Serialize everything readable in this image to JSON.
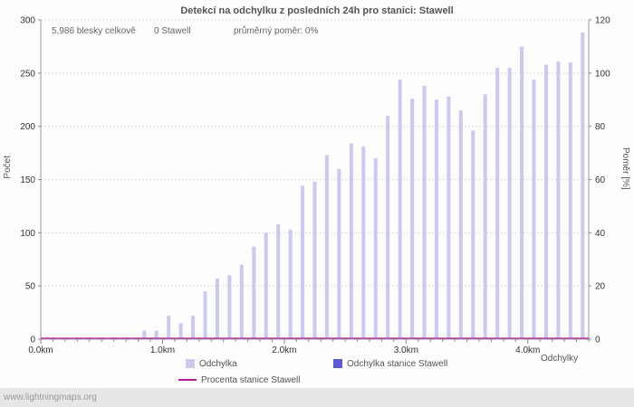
{
  "header": {
    "title": "Detekcí na odchylku z posledních 24h pro stanici: Stawell",
    "stats": {
      "total_flashes": "5,986 blesky celkově",
      "station_count": "0 Stawell",
      "average_ratio": "průměrný poměr: 0%"
    }
  },
  "chart_data": {
    "type": "bar",
    "title": "Detekcí na odchylku z posledních 24h pro stanici: Stawell",
    "xlabel": "Odchylky",
    "ylabel_left": "Počet",
    "ylabel_right": "Poměr [%]",
    "ylim_left": [
      0,
      300
    ],
    "ylim_right": [
      0,
      120
    ],
    "y_ticks_left": [
      0,
      50,
      100,
      150,
      200,
      250,
      300
    ],
    "y_ticks_right": [
      0,
      20,
      40,
      60,
      80,
      100,
      120
    ],
    "x_axis_max_km": 4.5,
    "x_step_km": 0.1,
    "x_major_ticks": [
      {
        "value": 0,
        "label": "0.0km"
      },
      {
        "value": 1,
        "label": "1.0km"
      },
      {
        "value": 2,
        "label": "2.0km"
      },
      {
        "value": 3,
        "label": "3.0km"
      },
      {
        "value": 4,
        "label": "4.0km"
      }
    ],
    "grid": true,
    "legend_position": "bottom",
    "series": [
      {
        "name": "Odchylka",
        "type": "bar",
        "color": "#c9c9f2",
        "x_start_km": 0.0,
        "values": [
          2,
          1,
          1,
          1,
          1,
          1,
          1,
          1,
          8,
          8,
          22,
          15,
          22,
          45,
          57,
          60,
          70,
          87,
          100,
          108,
          103,
          144,
          148,
          173,
          160,
          184,
          181,
          170,
          210,
          244,
          226,
          238,
          225,
          228,
          215,
          196,
          230,
          255,
          255,
          275,
          244,
          258,
          261,
          260,
          288
        ]
      },
      {
        "name": "Odchylka stanice Stawell",
        "type": "bar",
        "color": "#5c5cd6",
        "values": []
      },
      {
        "name": "Procenta stanice Stawell",
        "type": "line",
        "axis": "right",
        "color": "#b5199b",
        "values_percent": 0
      }
    ]
  },
  "legend": {
    "items": [
      {
        "label": "Odchylka",
        "swatch": "bar-light"
      },
      {
        "label": "Odchylka stanice Stawell",
        "swatch": "bar-dark"
      },
      {
        "label": "Procenta stanice Stawell",
        "swatch": "line"
      }
    ]
  },
  "footer": {
    "watermark": "www.lightningmaps.org"
  }
}
